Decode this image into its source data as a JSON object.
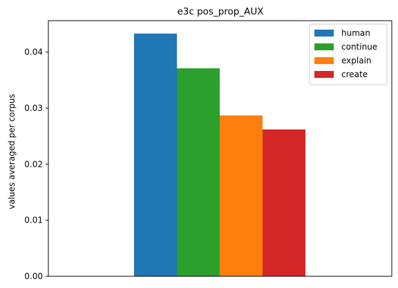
{
  "chart_data": {
    "type": "bar",
    "title": "e3c pos_prop_AUX",
    "xlabel": "",
    "ylabel": "values averaged per corpus",
    "ylim": [
      0,
      0.0456
    ],
    "yticks": [
      0.0,
      0.01,
      0.02,
      0.03,
      0.04
    ],
    "ytick_labels": [
      "0.00",
      "0.01",
      "0.02",
      "0.03",
      "0.04"
    ],
    "grid": false,
    "legend_position": "top-right",
    "categories": [
      ""
    ],
    "series": [
      {
        "name": "human",
        "values": [
          0.0433
        ],
        "color": "#1f77b4"
      },
      {
        "name": "continue",
        "values": [
          0.0371
        ],
        "color": "#2ca02c"
      },
      {
        "name": "explain",
        "values": [
          0.0287
        ],
        "color": "#ff7f0e"
      },
      {
        "name": "create",
        "values": [
          0.0262
        ],
        "color": "#d62728"
      }
    ]
  }
}
